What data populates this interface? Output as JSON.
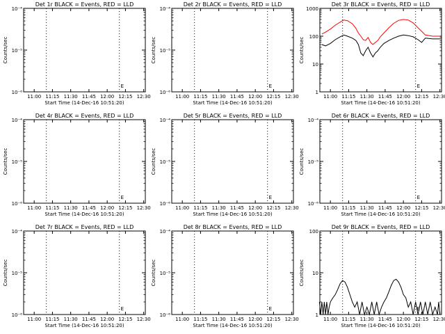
{
  "chart_data": [
    {
      "id": "p1",
      "type": "line",
      "title": "Det 1r BLACK = Events, RED = LLD",
      "xlabel": "Start Time (14-Dec-16 10:51:20)",
      "ylabel": "Counts/sec",
      "yscale": "log",
      "xlim": [
        "10:51:20",
        "12:31:20"
      ],
      "ylim": [
        1e-06,
        0.0001
      ],
      "xticks": [
        "11:00",
        "11:15",
        "11:30",
        "11:45",
        "12:00",
        "12:15",
        "12:30"
      ],
      "yticks": [
        "10⁻⁶",
        "10⁻⁵",
        "10⁻⁴"
      ],
      "markers": [
        {
          "time": "11:10",
          "label": ""
        },
        {
          "time": "12:10",
          "label": "E"
        }
      ],
      "series": []
    },
    {
      "id": "p2",
      "type": "line",
      "title": "Det 2r BLACK = Events, RED = LLD",
      "xlabel": "Start Time (14-Dec-16 10:51:20)",
      "ylabel": "Counts/sec",
      "yscale": "log",
      "xlim": [
        "10:51:20",
        "12:31:20"
      ],
      "ylim": [
        1e-06,
        0.0001
      ],
      "xticks": [
        "11:00",
        "11:15",
        "11:30",
        "11:45",
        "12:00",
        "12:15",
        "12:30"
      ],
      "yticks": [
        "10⁻⁶",
        "10⁻⁵",
        "10⁻⁴"
      ],
      "markers": [
        {
          "time": "11:10",
          "label": ""
        },
        {
          "time": "12:10",
          "label": "E"
        }
      ],
      "series": []
    },
    {
      "id": "p3",
      "type": "line",
      "title": "Det 3r BLACK = Events, RED = LLD",
      "xlabel": "Start Time (14-Dec-16 10:51:20)",
      "ylabel": "Counts/sec",
      "yscale": "log",
      "xlim": [
        "10:51:20",
        "12:31:20"
      ],
      "ylim": [
        1,
        1000
      ],
      "xticks": [
        "11:00",
        "11:15",
        "11:30",
        "11:45",
        "12:00",
        "12:15",
        "12:30"
      ],
      "yticks": [
        "1",
        "10",
        "100",
        "1000"
      ],
      "markers": [
        {
          "time": "11:10",
          "label": ""
        },
        {
          "time": "12:10",
          "label": "E"
        }
      ],
      "series": [
        {
          "name": "LLD",
          "color": "#ff0000",
          "x": [
            "10:53",
            "10:56",
            "11:00",
            "11:04",
            "11:08",
            "11:11",
            "11:14",
            "11:18",
            "11:21",
            "11:23",
            "11:25",
            "11:27",
            "11:29",
            "11:31",
            "11:33",
            "11:35",
            "11:37",
            "11:39",
            "11:41",
            "11:44",
            "11:48",
            "11:52",
            "11:56",
            "12:00",
            "12:04",
            "12:08",
            "12:12",
            "12:15",
            "12:18",
            "12:24",
            "12:30"
          ],
          "values": [
            120,
            140,
            180,
            250,
            320,
            380,
            360,
            280,
            190,
            130,
            100,
            75,
            70,
            90,
            60,
            50,
            60,
            70,
            95,
            130,
            200,
            290,
            370,
            400,
            380,
            300,
            200,
            150,
            110,
            100,
            100
          ]
        },
        {
          "name": "Events",
          "color": "#000000",
          "x": [
            "10:53",
            "10:56",
            "11:00",
            "11:04",
            "11:08",
            "11:11",
            "11:14",
            "11:18",
            "11:21",
            "11:23",
            "11:25",
            "11:27",
            "11:29",
            "11:31",
            "11:33",
            "11:35",
            "11:37",
            "11:39",
            "11:41",
            "11:44",
            "11:48",
            "11:52",
            "11:56",
            "12:00",
            "12:04",
            "12:08",
            "12:12",
            "12:15",
            "12:18",
            "12:24",
            "12:30"
          ],
          "values": [
            50,
            45,
            55,
            75,
            95,
            110,
            100,
            85,
            70,
            50,
            25,
            20,
            30,
            40,
            25,
            18,
            25,
            30,
            40,
            55,
            70,
            85,
            100,
            110,
            105,
            95,
            75,
            60,
            85,
            80,
            80
          ]
        }
      ]
    },
    {
      "id": "p4",
      "type": "line",
      "title": "Det 4r BLACK = Events, RED = LLD",
      "xlabel": "Start Time (14-Dec-16 10:51:20)",
      "ylabel": "Counts/sec",
      "yscale": "log",
      "xlim": [
        "10:51:20",
        "12:31:20"
      ],
      "ylim": [
        1e-06,
        0.0001
      ],
      "xticks": [
        "11:00",
        "11:15",
        "11:30",
        "11:45",
        "12:00",
        "12:15",
        "12:30"
      ],
      "yticks": [
        "10⁻⁶",
        "10⁻⁵",
        "10⁻⁴"
      ],
      "markers": [
        {
          "time": "11:10",
          "label": ""
        },
        {
          "time": "12:10",
          "label": "E"
        }
      ],
      "series": []
    },
    {
      "id": "p5",
      "type": "line",
      "title": "Det 5r BLACK = Events, RED = LLD",
      "xlabel": "Start Time (14-Dec-16 10:51:20)",
      "ylabel": "Counts/sec",
      "yscale": "log",
      "xlim": [
        "10:51:20",
        "12:31:20"
      ],
      "ylim": [
        1e-06,
        0.0001
      ],
      "xticks": [
        "11:00",
        "11:15",
        "11:30",
        "11:45",
        "12:00",
        "12:15",
        "12:30"
      ],
      "yticks": [
        "10⁻⁶",
        "10⁻⁵",
        "10⁻⁴"
      ],
      "markers": [
        {
          "time": "11:10",
          "label": ""
        },
        {
          "time": "12:10",
          "label": "E"
        }
      ],
      "series": []
    },
    {
      "id": "p6",
      "type": "line",
      "title": "Det 6r BLACK = Events, RED = LLD",
      "xlabel": "Start Time (14-Dec-16 10:51:20)",
      "ylabel": "Counts/sec",
      "yscale": "log",
      "xlim": [
        "10:51:20",
        "12:31:20"
      ],
      "ylim": [
        1e-06,
        0.0001
      ],
      "xticks": [
        "11:00",
        "11:15",
        "11:30",
        "11:45",
        "12:00",
        "12:15",
        "12:30"
      ],
      "yticks": [
        "10⁻⁶",
        "10⁻⁵",
        "10⁻⁴"
      ],
      "markers": [
        {
          "time": "11:10",
          "label": ""
        },
        {
          "time": "12:10",
          "label": "E"
        }
      ],
      "series": []
    },
    {
      "id": "p7",
      "type": "line",
      "title": "Det 7r BLACK = Events, RED = LLD",
      "xlabel": "Start Time (14-Dec-16 10:51:20)",
      "ylabel": "Counts/sec",
      "yscale": "log",
      "xlim": [
        "10:51:20",
        "12:31:20"
      ],
      "ylim": [
        1e-06,
        0.0001
      ],
      "xticks": [
        "11:00",
        "11:15",
        "11:30",
        "11:45",
        "12:00",
        "12:15",
        "12:30"
      ],
      "yticks": [
        "10⁻⁶",
        "10⁻⁵",
        "10⁻⁴"
      ],
      "markers": [
        {
          "time": "11:10",
          "label": ""
        },
        {
          "time": "12:10",
          "label": "E"
        }
      ],
      "series": []
    },
    {
      "id": "p8",
      "type": "line",
      "title": "Det 8r BLACK = Events, RED = LLD",
      "xlabel": "Start Time (14-Dec-16 10:51:20)",
      "ylabel": "Counts/sec",
      "yscale": "log",
      "xlim": [
        "10:51:20",
        "12:31:20"
      ],
      "ylim": [
        1e-06,
        0.0001
      ],
      "xticks": [
        "11:00",
        "11:15",
        "11:30",
        "11:45",
        "12:00",
        "12:15",
        "12:30"
      ],
      "yticks": [
        "10⁻⁶",
        "10⁻⁵",
        "10⁻⁴"
      ],
      "markers": [
        {
          "time": "11:10",
          "label": ""
        },
        {
          "time": "12:10",
          "label": "E"
        }
      ],
      "series": []
    },
    {
      "id": "p9",
      "type": "line",
      "title": "Det 9r BLACK = Events, RED = LLD",
      "xlabel": "Start Time (14-Dec-16 10:51:20)",
      "ylabel": "Counts/sec",
      "yscale": "log",
      "xlim": [
        "10:51:20",
        "12:31:20"
      ],
      "ylim": [
        1,
        100
      ],
      "xticks": [
        "11:00",
        "11:15",
        "11:30",
        "11:45",
        "12:00",
        "12:15",
        "12:30"
      ],
      "yticks": [
        "1",
        "10",
        "100"
      ],
      "markers": [
        {
          "time": "11:10",
          "label": ""
        },
        {
          "time": "12:10",
          "label": "E"
        }
      ],
      "series": [
        {
          "name": "Events",
          "color": "#000000",
          "x": [
            "10:51",
            "10:52",
            "10:53",
            "10:54",
            "10:55",
            "10:56",
            "10:57",
            "10:58",
            "10:59",
            "11:00",
            "11:02",
            "11:04",
            "11:06",
            "11:08",
            "11:10",
            "11:12",
            "11:14",
            "11:16",
            "11:18",
            "11:20",
            "11:22",
            "11:24",
            "11:26",
            "11:28",
            "11:30",
            "11:32",
            "11:34",
            "11:36",
            "11:38",
            "11:40",
            "11:42",
            "11:44",
            "11:46",
            "11:48",
            "11:50",
            "11:52",
            "11:54",
            "11:56",
            "11:58",
            "12:00",
            "12:02",
            "12:04",
            "12:06",
            "12:08",
            "12:10",
            "12:12",
            "12:14",
            "12:16",
            "12:18",
            "12:20",
            "12:22",
            "12:24",
            "12:26",
            "12:28",
            "12:29",
            "12:30"
          ],
          "values": [
            2,
            1,
            2,
            1,
            2,
            1,
            2,
            1,
            1.5,
            2,
            2.5,
            3,
            4,
            5.5,
            6.5,
            6,
            4.5,
            3,
            2,
            1.5,
            2,
            1,
            2,
            1,
            1.5,
            1,
            2,
            1,
            2,
            1,
            1.5,
            2,
            2.5,
            3.5,
            5,
            6.5,
            7,
            6,
            4.5,
            3,
            2.5,
            1.5,
            2,
            1,
            2,
            1,
            2,
            1,
            2,
            1,
            2,
            1,
            1.5,
            1,
            2,
            1
          ]
        }
      ]
    }
  ]
}
